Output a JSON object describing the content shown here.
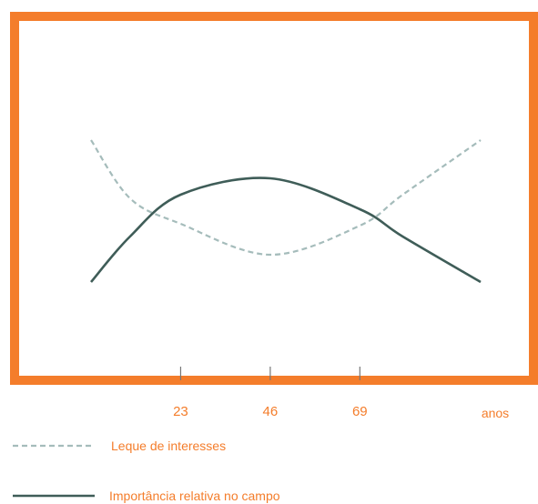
{
  "chart_data": {
    "type": "line",
    "x_unit": "anos",
    "x_ticks": [
      23,
      46,
      69
    ],
    "xlim": [
      0,
      100
    ],
    "ylim": [
      0,
      100
    ],
    "series": [
      {
        "name": "Leque de interesses",
        "style": "dashed",
        "color": "#a5bcbb",
        "points": [
          [
            0,
            88
          ],
          [
            10,
            56
          ],
          [
            23,
            42
          ],
          [
            46,
            25
          ],
          [
            69,
            41
          ],
          [
            80,
            58
          ],
          [
            100,
            88
          ]
        ]
      },
      {
        "name": "Importância relativa no campo",
        "style": "solid",
        "color": "#3f5d58",
        "points": [
          [
            0,
            10
          ],
          [
            10,
            35
          ],
          [
            23,
            58
          ],
          [
            46,
            67
          ],
          [
            69,
            50
          ],
          [
            80,
            35
          ],
          [
            100,
            10
          ]
        ]
      }
    ]
  },
  "colors": {
    "frame": "#f47d2b",
    "text": "#f47d2b",
    "axis": "#777777"
  }
}
